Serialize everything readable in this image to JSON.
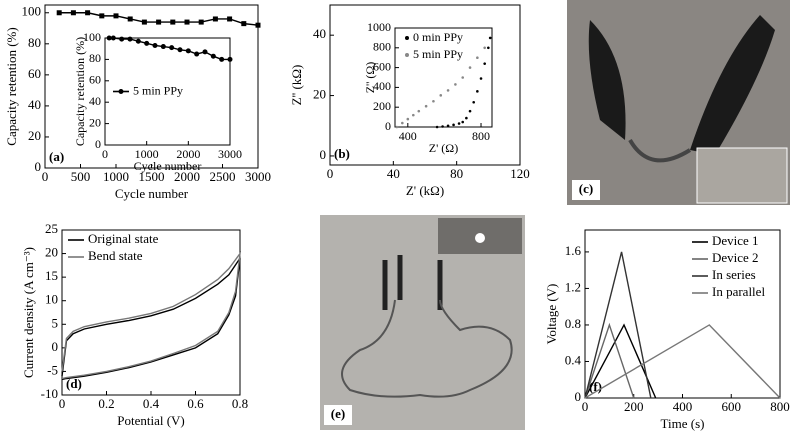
{
  "chart_data": [
    {
      "type": "line",
      "panel_label": "(a)",
      "xlabel": "Cycle number",
      "ylabel": "Capacity retention (%)",
      "xlim": [
        0,
        3000
      ],
      "ylim": [
        0,
        105
      ],
      "xticks": [
        0,
        500,
        1000,
        1500,
        2000,
        2500,
        3000
      ],
      "yticks": [
        0,
        20,
        40,
        60,
        80,
        100
      ],
      "series": [
        {
          "color": "#000000",
          "marker": "square",
          "x": [
            200,
            400,
            600,
            800,
            1000,
            1200,
            1400,
            1600,
            1800,
            2000,
            2200,
            2400,
            2600,
            2800,
            3000
          ],
          "values": [
            100,
            100,
            100,
            98,
            98,
            96,
            94,
            94,
            94,
            94,
            94,
            96,
            96,
            93,
            92
          ]
        }
      ]
    },
    {
      "type": "line",
      "xlabel": "Cycle number",
      "ylabel": "Capacity retention (%)",
      "legend": "center-left",
      "xlim": [
        0,
        3000
      ],
      "ylim": [
        0,
        100
      ],
      "xticks": [
        0,
        1000,
        2000,
        3000
      ],
      "yticks": [
        0,
        20,
        40,
        60,
        80,
        100
      ],
      "series": [
        {
          "name": "5 min PPy",
          "color": "#000000",
          "marker": "circle",
          "x": [
            100,
            200,
            400,
            600,
            800,
            1000,
            1200,
            1400,
            1600,
            1800,
            2000,
            2200,
            2400,
            2600,
            2800,
            3000
          ],
          "values": [
            100,
            100,
            99,
            99,
            97,
            95,
            93,
            92,
            91,
            89,
            88,
            85,
            87,
            83,
            80,
            80
          ]
        }
      ]
    },
    {
      "type": "scatter",
      "panel_label": "(b)",
      "xlabel": "Z' (kΩ)",
      "ylabel": "Z'' (kΩ)",
      "xlim": [
        0,
        120
      ],
      "ylim": [
        -3,
        50
      ],
      "xticks": [
        0,
        40,
        80,
        120
      ],
      "yticks": [
        0,
        20,
        40
      ],
      "series": []
    },
    {
      "type": "scatter",
      "xlabel": "Z' (Ω)",
      "ylabel": "Z'' (Ω)",
      "legend": "upper-left",
      "xlim": [
        330,
        860
      ],
      "ylim": [
        0,
        1000
      ],
      "xticks": [
        400,
        800
      ],
      "yticks": [
        0,
        200,
        400,
        600,
        800,
        1000
      ],
      "series": [
        {
          "name": "0 min PPy",
          "color": "#000000",
          "x": [
            560,
            590,
            620,
            650,
            680,
            700,
            720,
            740,
            760,
            780,
            800,
            820,
            840,
            850
          ],
          "values": [
            0,
            5,
            12,
            22,
            35,
            50,
            90,
            160,
            250,
            360,
            490,
            640,
            800,
            900
          ]
        },
        {
          "name": "5 min PPy",
          "color": "#888888",
          "x": [
            340,
            370,
            400,
            430,
            460,
            500,
            540,
            580,
            620,
            660,
            700,
            740,
            780,
            820
          ],
          "values": [
            0,
            40,
            80,
            120,
            160,
            210,
            260,
            320,
            370,
            430,
            500,
            600,
            700,
            800
          ]
        }
      ]
    },
    {
      "type": "line",
      "panel_label": "(d)",
      "xlabel": "Potential (V)",
      "ylabel": "Current density (A cm⁻³)",
      "legend": "upper-left",
      "xlim": [
        0,
        0.8
      ],
      "ylim": [
        -10,
        25
      ],
      "xticks": [
        0,
        0.2,
        0.4,
        0.6,
        0.8
      ],
      "yticks": [
        -10,
        -5,
        0,
        5,
        10,
        15,
        20,
        25
      ],
      "series": [
        {
          "name": "Original state",
          "color": "#000000",
          "x": [
            0,
            0.02,
            0.05,
            0.1,
            0.2,
            0.3,
            0.4,
            0.5,
            0.6,
            0.7,
            0.75,
            0.8,
            0.78,
            0.75,
            0.7,
            0.6,
            0.5,
            0.4,
            0.3,
            0.2,
            0.1,
            0.02,
            0
          ],
          "values": [
            -6,
            1.5,
            3,
            4,
            5,
            5.8,
            6.8,
            8.2,
            10.5,
            13.5,
            15.5,
            19,
            11,
            7,
            3,
            0,
            -1.5,
            -3,
            -4.2,
            -5.2,
            -6,
            -6.5,
            -6.7
          ]
        },
        {
          "name": "Bend state",
          "color": "#777777",
          "x": [
            0,
            0.02,
            0.05,
            0.1,
            0.2,
            0.3,
            0.4,
            0.5,
            0.6,
            0.7,
            0.75,
            0.8,
            0.78,
            0.75,
            0.7,
            0.6,
            0.5,
            0.4,
            0.3,
            0.2,
            0.1,
            0.02,
            0
          ],
          "values": [
            -5,
            2,
            3.5,
            4.5,
            5.5,
            6.3,
            7.3,
            8.8,
            11.3,
            14.5,
            16.8,
            20,
            12,
            7.5,
            3.5,
            0.5,
            -1.2,
            -2.8,
            -4,
            -5,
            -5.8,
            -6.3,
            -6.5
          ]
        }
      ]
    },
    {
      "type": "line",
      "panel_label": "(f)",
      "xlabel": "Time (s)",
      "ylabel": "Voltage (V)",
      "legend": "upper-right",
      "xlim": [
        0,
        800
      ],
      "ylim": [
        0,
        1.84
      ],
      "xticks": [
        0,
        200,
        400,
        600,
        800
      ],
      "yticks": [
        0,
        0.4,
        0.8,
        1.2,
        1.6
      ],
      "series": [
        {
          "name": "Device 1",
          "color": "#000000",
          "x": [
            0,
            160,
            290
          ],
          "values": [
            0,
            0.8,
            0
          ]
        },
        {
          "name": "Device 2",
          "color": "#666666",
          "x": [
            0,
            100,
            200
          ],
          "values": [
            0,
            0.8,
            0
          ]
        },
        {
          "name": "In series",
          "color": "#333333",
          "x": [
            0,
            150,
            270
          ],
          "values": [
            0,
            1.6,
            0
          ]
        },
        {
          "name": "In parallel",
          "color": "#777777",
          "x": [
            0,
            510,
            800
          ],
          "values": [
            0,
            0.8,
            0
          ]
        }
      ]
    }
  ],
  "photos": [
    {
      "panel_label": "(c)"
    },
    {
      "panel_label": "(e)"
    }
  ]
}
